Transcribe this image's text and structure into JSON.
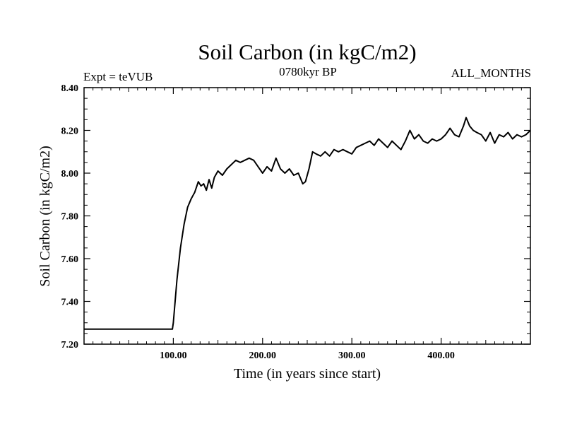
{
  "chart_data": {
    "type": "line",
    "title": "Soil Carbon (in kgC/m2)",
    "experiment_label": "Expt = teVUB",
    "period_label": "0780kyr BP",
    "season_label": "ALL_MONTHS",
    "xlabel": "Time (in years since start)",
    "ylabel": "Soil Carbon (in kgC/m2)",
    "xlim": [
      0,
      500
    ],
    "ylim": [
      7.2,
      8.4
    ],
    "x_ticks": [
      {
        "value": 100,
        "label": "100.00"
      },
      {
        "value": 200,
        "label": "200.00"
      },
      {
        "value": 300,
        "label": "300.00"
      },
      {
        "value": 400,
        "label": "400.00"
      }
    ],
    "y_ticks": [
      {
        "value": 7.2,
        "label": "7.20"
      },
      {
        "value": 7.4,
        "label": "7.40"
      },
      {
        "value": 7.6,
        "label": "7.60"
      },
      {
        "value": 7.8,
        "label": "7.80"
      },
      {
        "value": 8.0,
        "label": "8.00"
      },
      {
        "value": 8.2,
        "label": "8.20"
      },
      {
        "value": 8.4,
        "label": "8.40"
      }
    ],
    "series": [
      {
        "name": "Soil Carbon",
        "color": "#000000",
        "x": [
          0,
          99,
          100,
          104,
          108,
          112,
          116,
          120,
          124,
          128,
          131,
          134,
          137,
          140,
          143,
          146,
          150,
          155,
          160,
          165,
          170,
          175,
          180,
          185,
          190,
          195,
          200,
          205,
          210,
          215,
          220,
          225,
          230,
          235,
          240,
          245,
          248,
          252,
          256,
          260,
          265,
          270,
          275,
          280,
          285,
          290,
          295,
          300,
          305,
          310,
          315,
          320,
          325,
          330,
          335,
          340,
          345,
          350,
          355,
          360,
          365,
          370,
          375,
          380,
          385,
          390,
          395,
          400,
          405,
          410,
          415,
          420,
          425,
          428,
          432,
          436,
          440,
          445,
          450,
          455,
          460,
          465,
          470,
          475,
          480,
          485,
          490,
          495,
          500
        ],
        "values": [
          7.27,
          7.27,
          7.3,
          7.5,
          7.65,
          7.76,
          7.84,
          7.88,
          7.91,
          7.96,
          7.94,
          7.95,
          7.92,
          7.97,
          7.93,
          7.98,
          8.01,
          7.99,
          8.02,
          8.04,
          8.06,
          8.05,
          8.06,
          8.07,
          8.06,
          8.03,
          8.0,
          8.03,
          8.01,
          8.07,
          8.02,
          8.0,
          8.02,
          7.99,
          8.0,
          7.95,
          7.96,
          8.02,
          8.1,
          8.09,
          8.08,
          8.1,
          8.08,
          8.11,
          8.1,
          8.11,
          8.1,
          8.09,
          8.12,
          8.13,
          8.14,
          8.15,
          8.13,
          8.16,
          8.14,
          8.12,
          8.15,
          8.13,
          8.11,
          8.15,
          8.2,
          8.16,
          8.18,
          8.15,
          8.14,
          8.16,
          8.15,
          8.16,
          8.18,
          8.21,
          8.18,
          8.17,
          8.22,
          8.26,
          8.22,
          8.2,
          8.19,
          8.18,
          8.15,
          8.19,
          8.14,
          8.18,
          8.17,
          8.19,
          8.16,
          8.18,
          8.17,
          8.18,
          8.2
        ]
      }
    ]
  }
}
